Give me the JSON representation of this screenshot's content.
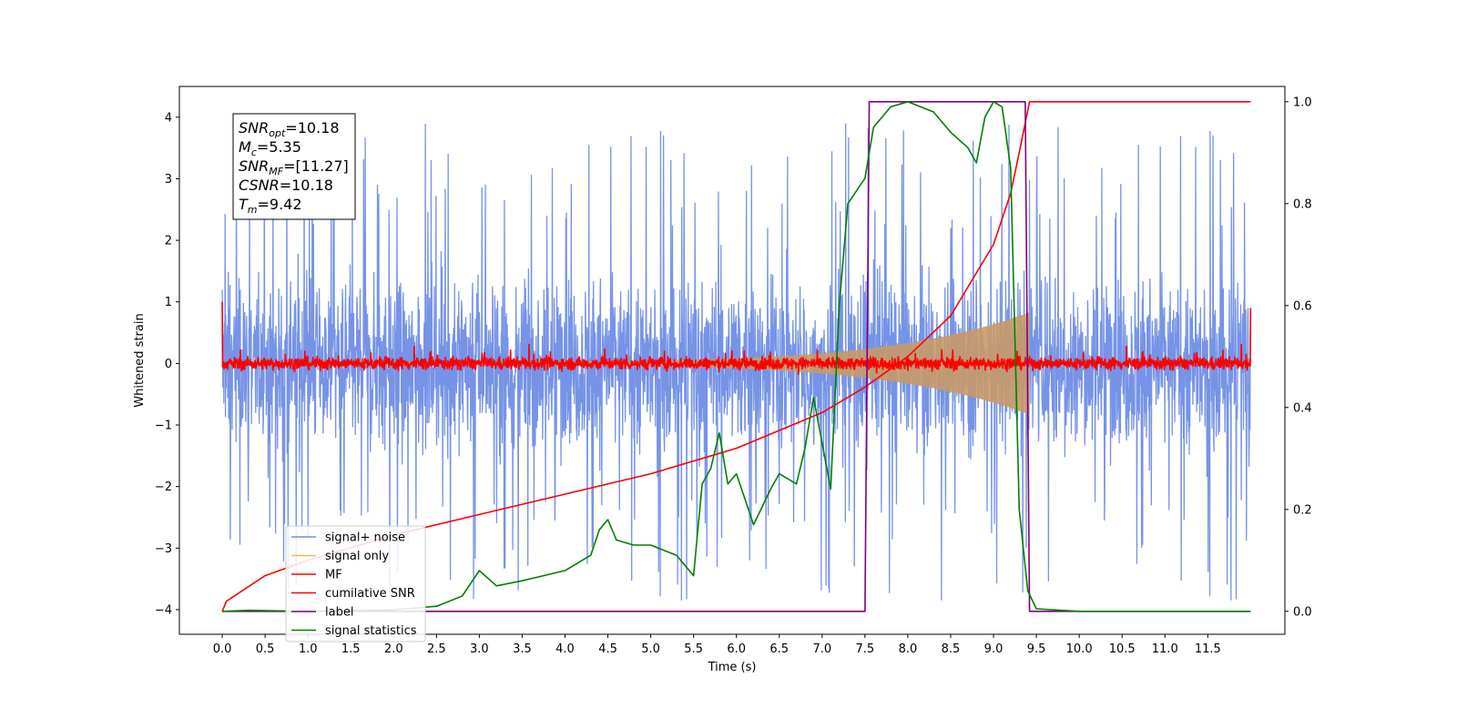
{
  "chart_data": {
    "type": "line",
    "xlabel": "Time (s)",
    "ylabel": "Whitened strain",
    "xlim": [
      -0.5,
      12.4
    ],
    "ylim": [
      -4.4,
      4.5
    ],
    "y2lim": [
      -0.045,
      1.03
    ],
    "grid": false,
    "legend_position": "lower-left",
    "x_ticks": [
      "0.0",
      "0.5",
      "1.0",
      "1.5",
      "2.0",
      "2.5",
      "3.0",
      "3.5",
      "4.0",
      "4.5",
      "5.0",
      "5.5",
      "6.0",
      "6.5",
      "7.0",
      "7.5",
      "8.0",
      "8.5",
      "9.0",
      "9.5",
      "10.0",
      "10.5",
      "11.0",
      "11.5"
    ],
    "y_ticks": [
      "−4",
      "−3",
      "−2",
      "−1",
      "0",
      "1",
      "2",
      "3",
      "4"
    ],
    "y2_ticks": [
      "0.0",
      "0.2",
      "0.4",
      "0.6",
      "0.8",
      "1.0"
    ],
    "annotation": {
      "lines": [
        {
          "var": "SNR",
          "sub": "opt",
          "value": "=10.18"
        },
        {
          "var": "M",
          "sub": "c",
          "value": "=5.35"
        },
        {
          "var": "SNR",
          "sub": "MF",
          "value": "=[11.27]"
        },
        {
          "var": "CSNR",
          "sub": "",
          "value": "=10.18"
        },
        {
          "var": "T",
          "sub": "m",
          "value": "=9.42"
        }
      ]
    },
    "series": [
      {
        "name": "signal+ noise",
        "color": "#6f8de6",
        "axis": "left",
        "style": "noise",
        "x_range": [
          0.0,
          12.0
        ],
        "spread": 2.5
      },
      {
        "name": "signal only",
        "color": "#f5b65a",
        "axis": "left",
        "style": "chirp",
        "x_range": [
          0.0,
          9.42
        ],
        "peak_amplitude": 0.8
      },
      {
        "name": "MF",
        "color": "#ff0000",
        "axis": "left",
        "style": "mf",
        "x_range": [
          0.0,
          12.0
        ],
        "spread": 0.15
      },
      {
        "name": "cumilative SNR",
        "color": "#ff0000",
        "axis": "right",
        "x": [
          0.0,
          0.05,
          0.5,
          1.0,
          2.0,
          3.0,
          4.0,
          5.0,
          6.0,
          7.0,
          7.5,
          8.0,
          8.5,
          9.0,
          9.2,
          9.3,
          9.42,
          10.0,
          11.0,
          12.0
        ],
        "values": [
          0.0,
          0.02,
          0.07,
          0.1,
          0.15,
          0.19,
          0.23,
          0.27,
          0.32,
          0.39,
          0.44,
          0.5,
          0.58,
          0.72,
          0.82,
          0.9,
          1.0,
          1.0,
          1.0,
          1.0
        ]
      },
      {
        "name": "label",
        "color": "#800080",
        "axis": "right",
        "x": [
          0.0,
          7.5,
          7.55,
          9.37,
          9.42,
          12.0
        ],
        "values": [
          0.0,
          0.0,
          1.0,
          1.0,
          0.0,
          0.0
        ]
      },
      {
        "name": "signal statistics",
        "color": "#008000",
        "axis": "right",
        "x": [
          0.0,
          0.3,
          1.0,
          2.0,
          2.5,
          2.8,
          3.0,
          3.2,
          3.5,
          4.0,
          4.3,
          4.4,
          4.5,
          4.6,
          4.8,
          5.0,
          5.3,
          5.5,
          5.6,
          5.7,
          5.8,
          5.9,
          6.0,
          6.2,
          6.4,
          6.5,
          6.7,
          6.8,
          6.9,
          7.0,
          7.1,
          7.2,
          7.3,
          7.5,
          7.6,
          7.8,
          8.0,
          8.3,
          8.5,
          8.7,
          8.8,
          8.9,
          9.0,
          9.1,
          9.2,
          9.3,
          9.4,
          9.5,
          10.0,
          11.0,
          12.0
        ],
        "values": [
          0.0,
          0.002,
          0.0,
          0.003,
          0.01,
          0.03,
          0.08,
          0.05,
          0.06,
          0.08,
          0.11,
          0.16,
          0.18,
          0.14,
          0.13,
          0.13,
          0.11,
          0.07,
          0.25,
          0.28,
          0.35,
          0.25,
          0.27,
          0.17,
          0.24,
          0.27,
          0.25,
          0.32,
          0.42,
          0.33,
          0.24,
          0.6,
          0.8,
          0.85,
          0.95,
          0.99,
          1.0,
          0.98,
          0.94,
          0.91,
          0.88,
          0.97,
          1.0,
          0.99,
          0.87,
          0.2,
          0.04,
          0.005,
          0.0,
          0.0,
          0.0
        ]
      }
    ]
  }
}
